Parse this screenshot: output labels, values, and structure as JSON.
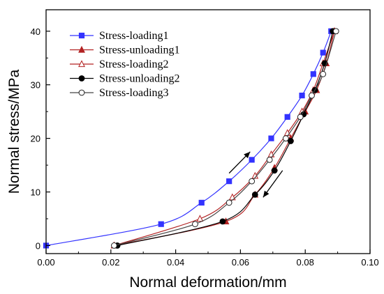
{
  "chart_data": {
    "type": "line",
    "xlabel": "Normal deformation/mm",
    "ylabel": "Normal stress/MPa",
    "xlim": [
      0.0,
      0.1
    ],
    "ylim": [
      -1.5,
      44
    ],
    "xticks": [
      "0.00",
      "0.02",
      "0.04",
      "0.06",
      "0.08",
      "0.10"
    ],
    "xtick_values": [
      0.0,
      0.02,
      0.04,
      0.06,
      0.08,
      0.1
    ],
    "yticks": [
      "0",
      "10",
      "20",
      "30",
      "40"
    ],
    "ytick_values": [
      0,
      10,
      20,
      30,
      40
    ],
    "grid": false,
    "legend_position": "top-left",
    "series": [
      {
        "name": "Stress-loading1",
        "color": "#3333ff",
        "marker": "square-filled",
        "x": [
          0.0,
          0.0355,
          0.048,
          0.0565,
          0.0635,
          0.0695,
          0.0745,
          0.079,
          0.0825,
          0.0855,
          0.088
        ],
        "y": [
          0,
          4,
          8,
          12,
          16,
          20,
          24,
          28,
          32,
          36,
          40
        ]
      },
      {
        "name": "Stress-unloading1",
        "color": "#b22222",
        "marker": "triangle-filled",
        "x": [
          0.089,
          0.0865,
          0.0835,
          0.08,
          0.0755,
          0.0705,
          0.0645,
          0.0555,
          0.021
        ],
        "y": [
          40,
          34,
          29,
          25,
          20,
          14.5,
          9.5,
          4.5,
          0
        ]
      },
      {
        "name": "Stress-loading2",
        "color": "#b22222",
        "marker": "triangle-open",
        "x": [
          0.021,
          0.0475,
          0.0575,
          0.0645,
          0.0695,
          0.0745,
          0.079,
          0.0825,
          0.0855,
          0.089
        ],
        "y": [
          0,
          5,
          9,
          13,
          17,
          21,
          25,
          29,
          34,
          40
        ]
      },
      {
        "name": "Stress-unloading2",
        "color": "#000000",
        "marker": "circle-filled",
        "x": [
          0.0885,
          0.086,
          0.083,
          0.0795,
          0.0755,
          0.0705,
          0.0645,
          0.0545,
          0.022
        ],
        "y": [
          40,
          34,
          29,
          24.5,
          19.5,
          14,
          9.5,
          4.5,
          0
        ]
      },
      {
        "name": "Stress-loading3",
        "color": "#555555",
        "marker": "circle-open",
        "x": [
          0.021,
          0.046,
          0.0565,
          0.0635,
          0.069,
          0.074,
          0.0785,
          0.082,
          0.0855,
          0.0895
        ],
        "y": [
          0,
          4,
          8,
          12,
          16,
          20,
          24,
          28,
          32,
          40
        ]
      }
    ],
    "annotations": [
      {
        "type": "arrow",
        "direction": "up",
        "from": [
          0.0565,
          13.5
        ],
        "to": [
          0.063,
          17.5
        ]
      },
      {
        "type": "arrow",
        "direction": "down",
        "from": [
          0.073,
          14
        ],
        "to": [
          0.067,
          9
        ]
      }
    ]
  }
}
